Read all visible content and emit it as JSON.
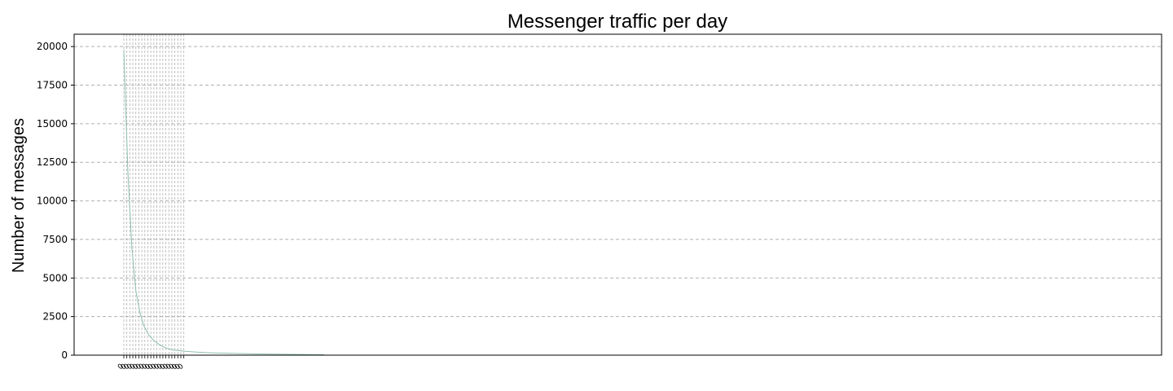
{
  "chart_data": {
    "type": "line",
    "title": "Messenger traffic per day",
    "xlabel": "",
    "ylabel": "Number of messages",
    "ylim": [
      0,
      20800
    ],
    "yticks": [
      0,
      2500,
      5000,
      7500,
      10000,
      12500,
      15000,
      17500,
      20000
    ],
    "xlim": [
      0,
      100
    ],
    "grid": true,
    "line_color": "#8fbfb0",
    "x": [
      0,
      0.4,
      0.8,
      1.2,
      1.6,
      2.0,
      2.5,
      3.0,
      3.5,
      4.0,
      4.5,
      5.0,
      6.0,
      7.0,
      8.0,
      9.0,
      10.0,
      12.0,
      15.0,
      20.0
    ],
    "series": [
      {
        "values": [
          19800,
          12000,
          7000,
          4200,
          2800,
          1900,
          1300,
          950,
          700,
          520,
          400,
          330,
          260,
          210,
          175,
          150,
          130,
          100,
          70,
          30
        ]
      }
    ],
    "xticks": [
      {
        "x": 0.0,
        "label": "0"
      },
      {
        "x": 0.3,
        "label": "0"
      },
      {
        "x": 0.6,
        "label": "0"
      },
      {
        "x": 0.9,
        "label": "0"
      },
      {
        "x": 1.2,
        "label": "0"
      },
      {
        "x": 1.5,
        "label": "0"
      },
      {
        "x": 1.8,
        "label": "0"
      },
      {
        "x": 2.1,
        "label": "0"
      },
      {
        "x": 2.4,
        "label": "0"
      },
      {
        "x": 2.7,
        "label": "0"
      },
      {
        "x": 3.0,
        "label": "0"
      },
      {
        "x": 3.3,
        "label": "0"
      },
      {
        "x": 3.6,
        "label": "0"
      },
      {
        "x": 3.9,
        "label": "0"
      },
      {
        "x": 4.2,
        "label": "0"
      },
      {
        "x": 4.5,
        "label": "0"
      },
      {
        "x": 4.8,
        "label": "0"
      },
      {
        "x": 5.1,
        "label": "0"
      },
      {
        "x": 5.4,
        "label": "0"
      },
      {
        "x": 5.7,
        "label": "0"
      },
      {
        "x": 6.0,
        "label": "0"
      }
    ]
  }
}
